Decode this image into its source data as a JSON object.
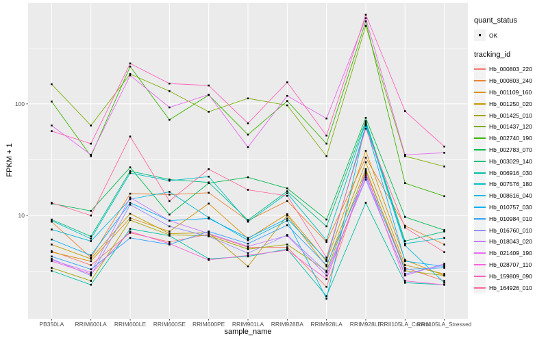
{
  "figure": {
    "background": "#FFFFFF",
    "panel_background": "#EBEBEB",
    "grid_color": "#FFFFFF",
    "tick_color": "#333333",
    "tick_text_color": "#4D4D4D",
    "axis_title_color": "#000000"
  },
  "legend": {
    "quant_status_title": "quant_status",
    "quant_status_value": "OK",
    "tracking_id_title": "tracking_id",
    "key_background": "#F2F2F2",
    "marker_color": "#000000"
  },
  "chart_data": {
    "type": "line",
    "title": "",
    "xlabel": "sample_name",
    "ylabel": "FPKM + 1",
    "y_scale": "log10",
    "grid": true,
    "legend_position": "right",
    "y_ticks": [
      10,
      100
    ],
    "y_minor_ticks": [
      3.162,
      31.62,
      316.2
    ],
    "ylim": [
      1.19,
      805
    ],
    "marker": "square",
    "marker_color": "#000000",
    "categories": [
      "PB350LA",
      "RRIM600LA",
      "RRIM600LE",
      "RRIM600SE",
      "RRIM600PE",
      "RRIM901LA",
      "RRIM928BA",
      "RRIM928LA",
      "RRIM928LE",
      "RRII105LA_Control",
      "RRII105LA_Stressed"
    ],
    "series": [
      {
        "name": "Hb_000803_220",
        "color": "#F8766D",
        "values": [
          4.8,
          3.6,
          7.0,
          5.8,
          6.8,
          5.2,
          5.2,
          2.3,
          25,
          3.4,
          2.6
        ]
      },
      {
        "name": "Hb_000803_240",
        "color": "#EA8331",
        "values": [
          8.8,
          4.2,
          15.7,
          15.4,
          16.0,
          9.0,
          13.5,
          5.8,
          33,
          8.1,
          5.5
        ]
      },
      {
        "name": "Hb_001109_160",
        "color": "#D89000",
        "values": [
          4.7,
          3.9,
          9.5,
          7.2,
          12.8,
          6.2,
          10.3,
          3.9,
          38,
          4.0,
          2.9
        ]
      },
      {
        "name": "Hb_001250_020",
        "color": "#C09B00",
        "values": [
          5.5,
          4.1,
          10.4,
          6.9,
          7.0,
          3.5,
          10.0,
          3.5,
          30,
          3.6,
          3.0
        ]
      },
      {
        "name": "Hb_001425_010",
        "color": "#A3A500",
        "values": [
          3.4,
          2.6,
          9.1,
          6.7,
          6.6,
          5.0,
          5.5,
          3.2,
          26,
          3.2,
          2.9
        ]
      },
      {
        "name": "Hb_001437_120",
        "color": "#7CAE00",
        "values": [
          150,
          64,
          185,
          130,
          85,
          112,
          97,
          34,
          500,
          34,
          27.5
        ]
      },
      {
        "name": "Hb_002740_190",
        "color": "#39B600",
        "values": [
          105,
          34,
          216,
          72,
          120,
          53,
          106,
          44,
          550,
          19.5,
          14.9
        ]
      },
      {
        "name": "Hb_002783_070",
        "color": "#00BB4E",
        "values": [
          12.8,
          11,
          27,
          10.2,
          19.5,
          22,
          17.5,
          9.2,
          75,
          9.7,
          7.4
        ]
      },
      {
        "name": "Hb_003029_140",
        "color": "#00BF7D",
        "values": [
          9.2,
          6.5,
          25,
          21,
          19.8,
          9.1,
          16.5,
          8.0,
          70,
          5.9,
          7.2
        ]
      },
      {
        "name": "Hb_006916_030",
        "color": "#00C1A3",
        "values": [
          3.2,
          2.4,
          7.6,
          6.6,
          4.1,
          4.3,
          5.0,
          1.9,
          13,
          2.5,
          2.4
        ]
      },
      {
        "name": "Hb_007576_180",
        "color": "#00BFC4",
        "values": [
          9.0,
          6.2,
          24,
          20.5,
          22.3,
          8.8,
          15.8,
          6.0,
          68,
          5.6,
          6.3
        ]
      },
      {
        "name": "Hb_008616_040",
        "color": "#00BAE0",
        "values": [
          7.5,
          5.9,
          14,
          16.3,
          9.6,
          6.0,
          9.0,
          1.8,
          66,
          5.4,
          2.5
        ]
      },
      {
        "name": "Hb_010757_030",
        "color": "#00B0F6",
        "values": [
          6.1,
          4.4,
          13,
          9.0,
          9.4,
          6.3,
          9.4,
          4.0,
          64,
          3.9,
          3.5
        ]
      },
      {
        "name": "Hb_010984_010",
        "color": "#35A2FF",
        "values": [
          4.3,
          3.3,
          6.3,
          5.5,
          7.2,
          5.6,
          8.2,
          3.6,
          23,
          3.3,
          3.4
        ]
      },
      {
        "name": "Hb_016760_010",
        "color": "#9590FF",
        "values": [
          4.1,
          2.9,
          12.5,
          8.0,
          6.5,
          4.6,
          6.7,
          3.1,
          21,
          3.0,
          3.6
        ]
      },
      {
        "name": "Hb_018043_020",
        "color": "#C77CFF",
        "values": [
          4.0,
          3.1,
          14.5,
          9.0,
          6.9,
          5.3,
          6.6,
          2.9,
          22,
          2.9,
          3.7
        ]
      },
      {
        "name": "Hb_021409_190",
        "color": "#E76BF3",
        "values": [
          64,
          35,
          180,
          93,
          121,
          41,
          118,
          74,
          585,
          35,
          36.5
        ]
      },
      {
        "name": "Hb_028707_110",
        "color": "#FA62DB",
        "values": [
          3.9,
          3.0,
          7.2,
          5.6,
          4.0,
          4.4,
          4.9,
          2.7,
          24,
          2.6,
          2.4
        ]
      },
      {
        "name": "Hb_159809_090",
        "color": "#FF62BC",
        "values": [
          57,
          44,
          230,
          152,
          146,
          67,
          156,
          52,
          630,
          86,
          41.5
        ]
      },
      {
        "name": "Hb_164926_010",
        "color": "#FF6A98",
        "values": [
          13,
          10,
          51,
          13.5,
          26,
          17,
          15,
          4.2,
          60,
          7.8,
          4.7
        ]
      }
    ]
  }
}
